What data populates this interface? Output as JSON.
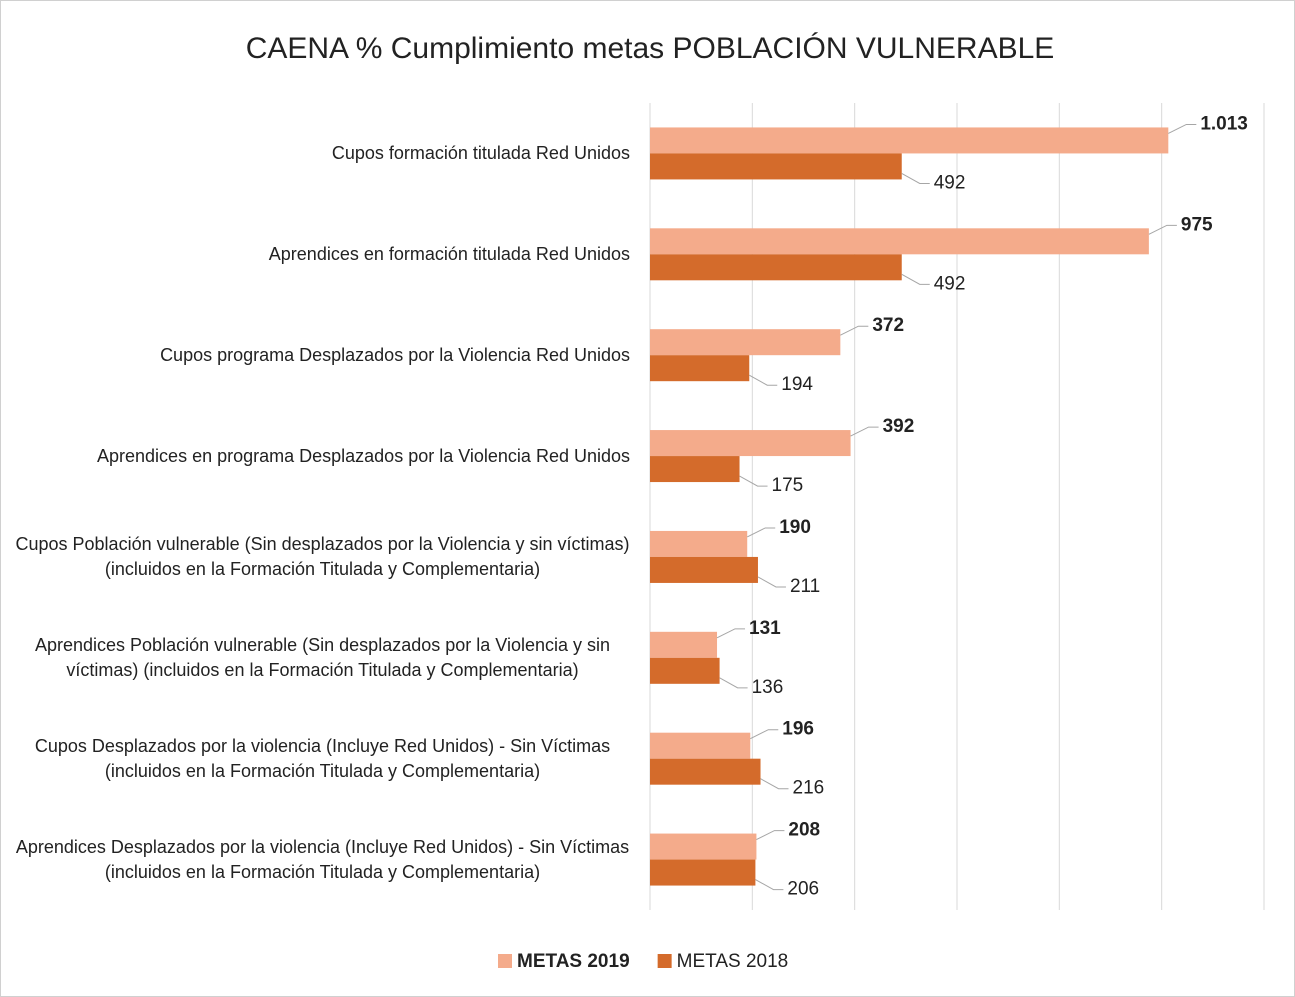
{
  "chart_data": {
    "type": "barh",
    "title": "CAENA % Cumplimiento metas POBLACIÓN VULNERABLE",
    "categories": [
      "Cupos formación titulada Red Unidos",
      "Aprendices en formación titulada Red Unidos",
      "Cupos programa Desplazados por la Violencia Red Unidos",
      "Aprendices en programa Desplazados por la Violencia Red Unidos",
      "Cupos Población vulnerable (Sin desplazados por la Violencia y sin víctimas)  (incluidos en la Formación Titulada y Complementaria)",
      "Aprendices Población vulnerable (Sin desplazados por la Violencia  y sin víctimas)  (incluidos en la Formación Titulada y Complementaria)",
      "Cupos  Desplazados por la violencia (Incluye Red Unidos) - Sin Víctimas (incluidos en la Formación Titulada y Complementaria)",
      "Aprendices  Desplazados por la violencia (Incluye Red Unidos) - Sin Víctimas (incluidos en la Formación Titulada y Complementaria)"
    ],
    "series": [
      {
        "name": "METAS 2019",
        "color": "#f4ab8b",
        "values": [
          1013,
          975,
          372,
          392,
          190,
          131,
          196,
          208
        ],
        "value_labels": [
          "1.013",
          "975",
          "372",
          "392",
          "190",
          "131",
          "196",
          "208"
        ]
      },
      {
        "name": "METAS 2018",
        "color": "#d46b2b",
        "values": [
          492,
          492,
          194,
          175,
          211,
          136,
          216,
          206
        ]
      }
    ],
    "xlim": [
      0,
      1200
    ],
    "xticks": [
      0,
      200,
      400,
      600,
      800,
      1000,
      1200
    ],
    "grid": true,
    "legend": "bottom"
  }
}
